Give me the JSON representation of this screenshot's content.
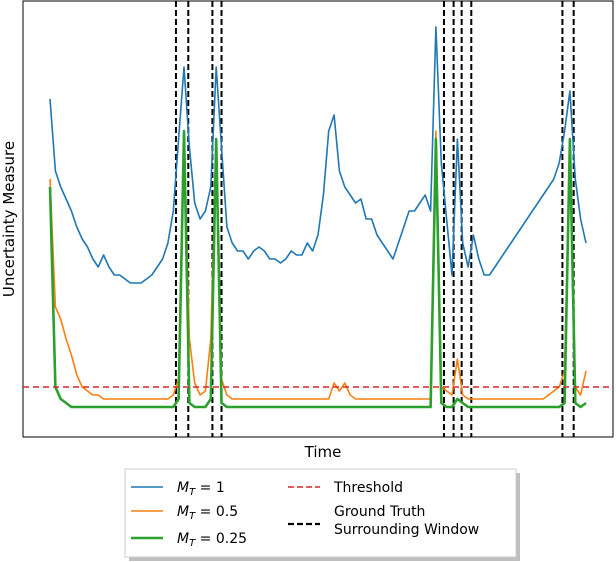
{
  "chart_data": {
    "type": "line",
    "xlabel": "Time",
    "ylabel": "Uncertainty Measure",
    "xlim": [
      0,
      100
    ],
    "ylim": [
      0,
      100
    ],
    "grid": false,
    "legend_placement": "bottom-center",
    "x": [
      0,
      1,
      2,
      3,
      4,
      5,
      6,
      7,
      8,
      9,
      10,
      11,
      12,
      13,
      14,
      15,
      16,
      17,
      18,
      19,
      20,
      21,
      22,
      23,
      24,
      25,
      26,
      27,
      28,
      29,
      30,
      31,
      32,
      33,
      34,
      35,
      36,
      37,
      38,
      39,
      40,
      41,
      42,
      43,
      44,
      45,
      46,
      47,
      48,
      49,
      50,
      51,
      52,
      53,
      54,
      55,
      56,
      57,
      58,
      59,
      60,
      61,
      62,
      63,
      64,
      65,
      66,
      67,
      68,
      69,
      70,
      71,
      72,
      73,
      74,
      75,
      76,
      77,
      78,
      79,
      80,
      81,
      82,
      83,
      84,
      85,
      86,
      87,
      88,
      89,
      90,
      91,
      92,
      93,
      94,
      95,
      96,
      97,
      98,
      99,
      100
    ],
    "series": [
      {
        "name": "M_T = 1",
        "color": "#1f77b4",
        "width": 1.6,
        "values": [
          80,
          62,
          58,
          55,
          52,
          48,
          45,
          43,
          40,
          38,
          41,
          38,
          36,
          36,
          35,
          34,
          34,
          34,
          35,
          36,
          38,
          40,
          44,
          52,
          70,
          88,
          68,
          54,
          50,
          52,
          58,
          88,
          68,
          48,
          44,
          42,
          42,
          40,
          42,
          43,
          42,
          40,
          40,
          39,
          40,
          42,
          41,
          41,
          44,
          42,
          46,
          56,
          72,
          76,
          62,
          58,
          56,
          54,
          55,
          50,
          50,
          46,
          44,
          42,
          40,
          44,
          48,
          52,
          52,
          54,
          56,
          52,
          98,
          64,
          50,
          36,
          70,
          44,
          38,
          46,
          40,
          36,
          36,
          38,
          40,
          42,
          44,
          46,
          48,
          50,
          52,
          54,
          56,
          58,
          60,
          64,
          72,
          82,
          60,
          50,
          44
        ]
      },
      {
        "name": "M_T = 0.5",
        "color": "#ff7f0e",
        "width": 1.6,
        "values": [
          60,
          28,
          25,
          20,
          16,
          11,
          8,
          7,
          6,
          6,
          5,
          5,
          5,
          5,
          5,
          5,
          5,
          5,
          5,
          5,
          5,
          5,
          5,
          6,
          10,
          72,
          20,
          9,
          6,
          7,
          20,
          70,
          10,
          6,
          5,
          5,
          5,
          5,
          5,
          5,
          5,
          5,
          5,
          5,
          5,
          5,
          5,
          5,
          5,
          5,
          5,
          5,
          5,
          9,
          7,
          9,
          6,
          5,
          5,
          5,
          5,
          5,
          5,
          5,
          5,
          5,
          5,
          5,
          5,
          5,
          5,
          5,
          72,
          8,
          7,
          6,
          15,
          6,
          5,
          5,
          5,
          5,
          5,
          5,
          5,
          5,
          5,
          5,
          5,
          5,
          5,
          5,
          5,
          6,
          7,
          8,
          12,
          70,
          8,
          6,
          12
        ]
      },
      {
        "name": "M_T = 0.25",
        "color": "#2ca02c",
        "width": 2.6,
        "values": [
          58,
          8,
          5,
          4,
          3,
          3,
          3,
          3,
          3,
          3,
          3,
          3,
          3,
          3,
          3,
          3,
          3,
          3,
          3,
          3,
          3,
          3,
          3,
          3,
          5,
          72,
          4,
          3,
          3,
          3,
          5,
          70,
          4,
          3,
          3,
          3,
          3,
          3,
          3,
          3,
          3,
          3,
          3,
          3,
          3,
          3,
          3,
          3,
          3,
          3,
          3,
          3,
          3,
          3,
          3,
          3,
          3,
          3,
          3,
          3,
          3,
          3,
          3,
          3,
          3,
          3,
          3,
          3,
          3,
          3,
          3,
          3,
          70,
          4,
          3,
          3,
          5,
          4,
          3,
          3,
          3,
          3,
          3,
          3,
          3,
          3,
          3,
          3,
          3,
          3,
          3,
          3,
          3,
          3,
          3,
          3,
          4,
          70,
          4,
          3,
          4
        ]
      }
    ],
    "threshold": {
      "name": "Threshold",
      "value": 8,
      "color": "#d62728"
    },
    "ground_truth_windows": {
      "name": "Ground Truth Surrounding Window",
      "color": "#000000",
      "x": [
        23.5,
        25.8,
        30.3,
        32.0,
        73.5,
        75.3,
        76.8,
        78.6,
        95.6,
        97.7
      ]
    }
  },
  "legend": {
    "items": [
      {
        "kind": "line",
        "label_italic": "M",
        "label_sub": "T",
        "label_rest": " = 1",
        "color": "#1f77b4",
        "width": 1.6,
        "dashed": false
      },
      {
        "kind": "line",
        "label_italic": "M",
        "label_sub": "T",
        "label_rest": " = 0.5",
        "color": "#ff7f0e",
        "width": 1.6,
        "dashed": false
      },
      {
        "kind": "line",
        "label_italic": "M",
        "label_sub": "T",
        "label_rest": " = 0.25",
        "color": "#2ca02c",
        "width": 2.6,
        "dashed": false
      },
      {
        "kind": "line",
        "label": "Threshold",
        "color": "#d62728",
        "width": 1.6,
        "dashed": true
      },
      {
        "kind": "line",
        "label_lines": [
          "Ground Truth",
          "Surrounding Window"
        ],
        "color": "#000000",
        "width": 2.2,
        "dashed": true
      }
    ]
  }
}
